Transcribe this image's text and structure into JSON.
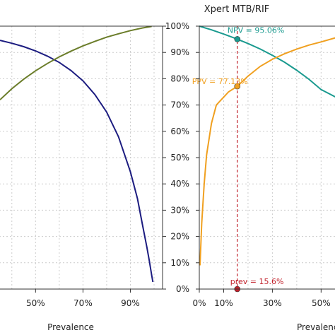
{
  "chart_data": [
    {
      "type": "line",
      "title": "",
      "xlabel": "Prevalence",
      "ylabel": "",
      "xlim": [
        35,
        100
      ],
      "ylim": [
        0,
        100
      ],
      "x_ticks": [
        50,
        70,
        90
      ],
      "x_tick_labels": [
        "50%",
        "70%",
        "90%"
      ],
      "grid": true,
      "colors": {
        "npv": "#1c1c80",
        "ppv": "#6b7d2a"
      },
      "series": [
        {
          "name": "",
          "color": "#1c1c80",
          "x": [
            35,
            40,
            45,
            50,
            55,
            60,
            65,
            70,
            75,
            80,
            85,
            90,
            93,
            95,
            97,
            98,
            99,
            99.5
          ],
          "y": [
            94.6,
            93.5,
            92.2,
            90.6,
            88.6,
            86.2,
            83.1,
            79.2,
            74.0,
            67.3,
            57.9,
            44.6,
            34.4,
            25.0,
            15.8,
            10.7,
            5.3,
            2.7
          ]
        },
        {
          "name": "",
          "color": "#6b7d2a",
          "x": [
            35,
            40,
            45,
            50,
            55,
            60,
            65,
            70,
            75,
            80,
            85,
            90,
            95,
            99
          ],
          "y": [
            72.0,
            76.2,
            79.8,
            83.0,
            85.8,
            88.3,
            90.5,
            92.5,
            94.2,
            95.8,
            97.1,
            98.3,
            99.3,
            99.9
          ]
        }
      ]
    },
    {
      "type": "line",
      "title": "Xpert MTB/RIF",
      "xlabel": "Prevalence",
      "ylabel": "",
      "xlim": [
        0,
        56
      ],
      "ylim": [
        0,
        100
      ],
      "x_ticks": [
        0,
        10,
        30,
        50
      ],
      "x_tick_labels": [
        "0%",
        "10%",
        "30%",
        "50%"
      ],
      "y_ticks": [
        0,
        10,
        20,
        30,
        40,
        50,
        60,
        70,
        80,
        90,
        100
      ],
      "y_tick_labels": [
        "0%",
        "10%",
        "20%",
        "30%",
        "40%",
        "50%",
        "60%",
        "70%",
        "80%",
        "90%",
        "100%"
      ],
      "grid": true,
      "series": [
        {
          "name": "",
          "color": "#1a9a8f",
          "x": [
            0,
            5,
            10,
            15,
            15.6,
            20,
            25,
            30,
            35,
            40,
            45,
            50,
            56
          ],
          "y": [
            100,
            98.6,
            97.0,
            95.3,
            95.06,
            93.4,
            91.3,
            88.9,
            86.3,
            83.2,
            79.8,
            75.9,
            73.0
          ]
        },
        {
          "name": "",
          "color": "#f0a020",
          "x": [
            0.3,
            1,
            2,
            3,
            5,
            7,
            10,
            12,
            15.6,
            20,
            25,
            30,
            35,
            40,
            45,
            50,
            56
          ],
          "y": [
            9.0,
            25.0,
            40.0,
            51.0,
            63.0,
            70.0,
            73.0,
            75.0,
            77.13,
            81.0,
            84.7,
            87.4,
            89.5,
            91.3,
            92.8,
            94.0,
            95.6
          ]
        }
      ],
      "vline": {
        "x": 15.6,
        "color": "#c0202a"
      },
      "annotations": [
        {
          "text": "NPV = 95.06%",
          "x": 15.6,
          "y": 95.06,
          "color": "#1a9a8f"
        },
        {
          "text": "PPV = 77.13%",
          "x": 15.6,
          "y": 77.13,
          "color": "#f0a020"
        },
        {
          "text": "prev = 15.6%",
          "x": 15.6,
          "y": 0,
          "color": "#c0202a"
        }
      ]
    }
  ]
}
